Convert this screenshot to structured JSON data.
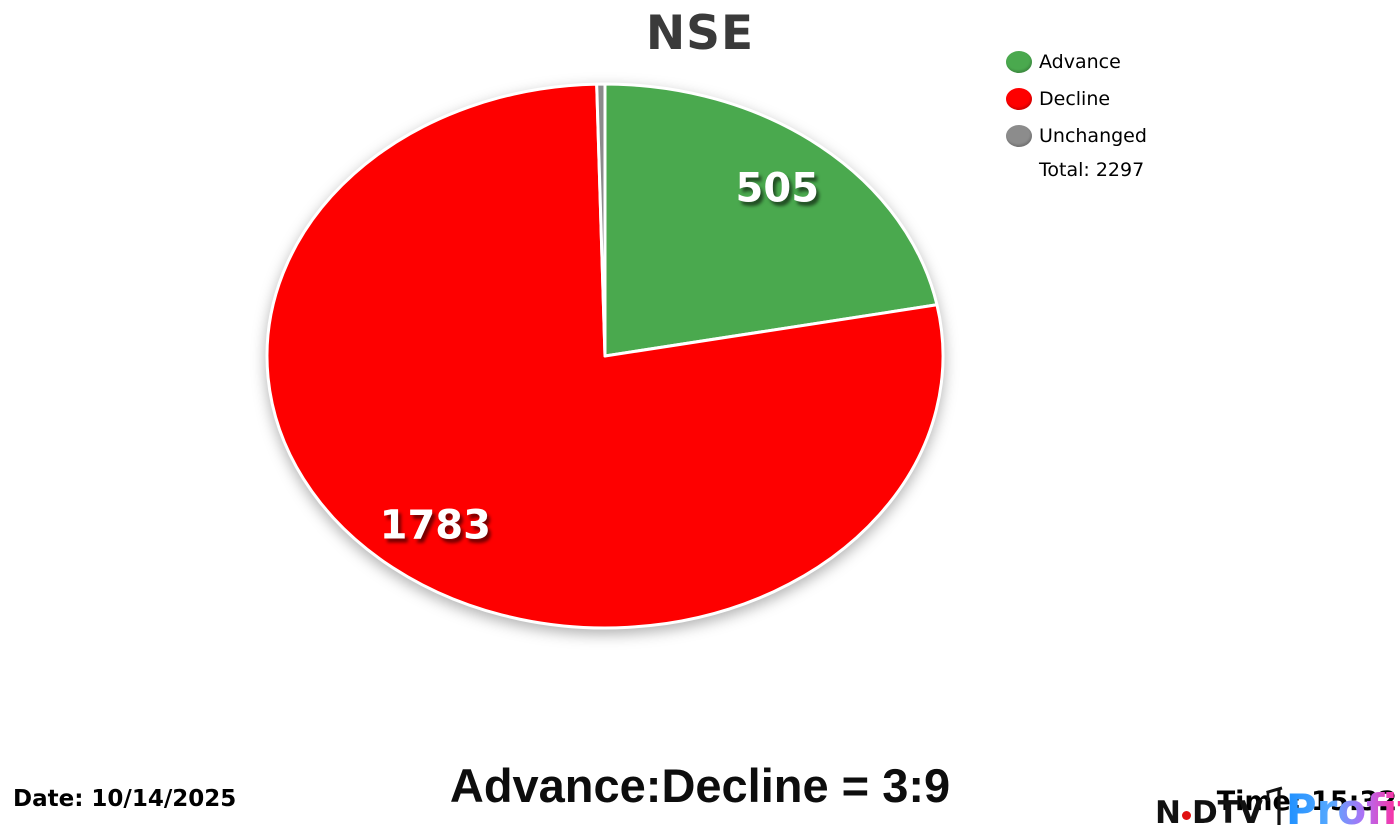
{
  "title": "NSE",
  "legend": {
    "items": [
      {
        "label": "Advance",
        "color": "#4aa94e"
      },
      {
        "label": "Decline",
        "color": "#fe0000"
      },
      {
        "label": "Unchanged",
        "color": "#8c8c8c"
      }
    ],
    "total_label": "Total: 2297"
  },
  "chart_data": {
    "type": "pie",
    "title": "NSE",
    "categories": [
      "Advance",
      "Decline",
      "Unchanged"
    ],
    "values": [
      505,
      1783,
      9
    ],
    "colors": [
      "#4aa94e",
      "#fe0000",
      "#8c8c8c"
    ],
    "total": 2297,
    "start_angle_deg": 0,
    "direction": "clockwise",
    "legend_position": "top-right",
    "slice_border_color": "#ffffff",
    "data_label_color": "#ffffff",
    "min_label_fraction": 0.02
  },
  "footer": {
    "date_label": "Date: 10/14/2025",
    "ratio_label": "Advance:Decline = 3:9",
    "time_label": "Time: 15:32"
  },
  "logo": {
    "ndtv_n": "N",
    "ndtv_dtv": "DTV",
    "profit": "Profit"
  }
}
